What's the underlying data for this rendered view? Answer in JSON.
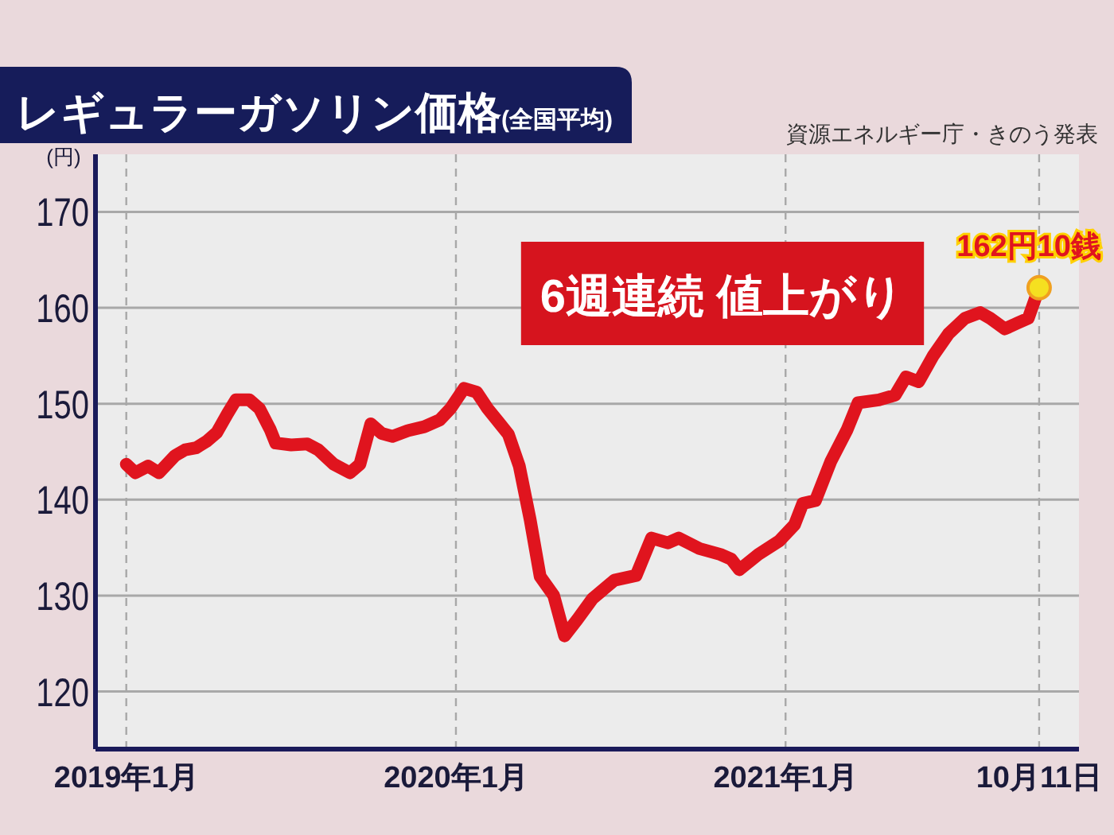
{
  "chart_data": {
    "type": "line",
    "title": "レギュラーガソリン価格",
    "subtitle": "(全国平均)",
    "ylabel": "(円)",
    "x": [
      "2019-01-07",
      "2019-01-17",
      "2019-01-31",
      "2019-02-12",
      "2019-03-02",
      "2019-03-13",
      "2019-03-25",
      "2019-04-06",
      "2019-04-17",
      "2019-04-29",
      "2019-05-08",
      "2019-05-23",
      "2019-06-03",
      "2019-06-15",
      "2019-06-21",
      "2019-07-08",
      "2019-07-26",
      "2019-08-07",
      "2019-08-24",
      "2019-09-11",
      "2019-09-22",
      "2019-10-04",
      "2019-10-16",
      "2019-10-28",
      "2019-11-14",
      "2019-12-02",
      "2019-12-19",
      "2019-12-31",
      "2020-01-15",
      "2020-01-29",
      "2020-02-10",
      "2020-02-22",
      "2020-03-04",
      "2020-03-16",
      "2020-03-28",
      "2020-04-08",
      "2020-04-23",
      "2020-05-05",
      "2020-05-19",
      "2020-06-05",
      "2020-06-29",
      "2020-07-23",
      "2020-08-09",
      "2020-08-27",
      "2020-09-08",
      "2020-10-01",
      "2020-10-24",
      "2020-11-05",
      "2020-11-14",
      "2020-12-05",
      "2020-12-28",
      "2021-01-14",
      "2021-01-23",
      "2021-02-06",
      "2021-02-23",
      "2021-03-13",
      "2021-03-25",
      "2021-04-17",
      "2021-05-05",
      "2021-05-17",
      "2021-05-31",
      "2021-06-16",
      "2021-07-03",
      "2021-07-21",
      "2021-08-07",
      "2021-08-18",
      "2021-09-03",
      "2021-09-17",
      "2021-09-29",
      "2021-10-11"
    ],
    "series": [
      {
        "color": "#e0141e",
        "values": [
          143.7,
          142.8,
          143.5,
          142.8,
          144.6,
          145.2,
          145.4,
          146.1,
          147.0,
          149.0,
          150.4,
          150.4,
          149.5,
          147.3,
          145.9,
          145.7,
          145.8,
          145.2,
          143.7,
          142.8,
          143.7,
          147.9,
          146.9,
          146.6,
          147.2,
          147.6,
          148.3,
          149.5,
          151.6,
          151.2,
          149.5,
          148.1,
          146.8,
          143.5,
          137.9,
          132.0,
          130.0,
          125.8,
          127.5,
          129.7,
          131.6,
          132.1,
          136.0,
          135.5,
          136.0,
          134.9,
          134.3,
          133.8,
          132.7,
          134.3,
          135.7,
          137.4,
          139.6,
          139.9,
          144.0,
          147.3,
          150.1,
          150.4,
          150.9,
          152.8,
          152.3,
          155.0,
          157.3,
          158.9,
          159.5,
          158.9,
          157.8,
          158.4,
          158.9,
          162.1
        ]
      }
    ],
    "xlim": [
      "2018-12-04",
      "2021-11-24"
    ],
    "ylim": [
      114,
      176
    ],
    "yticks": [
      120,
      130,
      140,
      150,
      160,
      170
    ],
    "xticks": [
      {
        "value": "2019-01-07",
        "label": "2019年1月"
      },
      {
        "value": "2020-01-06",
        "label": "2020年1月"
      },
      {
        "value": "2021-01-04",
        "label": "2021年1月"
      },
      {
        "value": "2021-10-11",
        "label": "10月11日"
      }
    ],
    "grid": true,
    "marker": "none",
    "line_style": "solid",
    "annotations": [
      "資源エネルギー庁・きのう発表",
      "6週連続 値上がり",
      {
        "text": "162円10銭",
        "x": "2021-10-11",
        "y": 162.1
      }
    ]
  }
}
